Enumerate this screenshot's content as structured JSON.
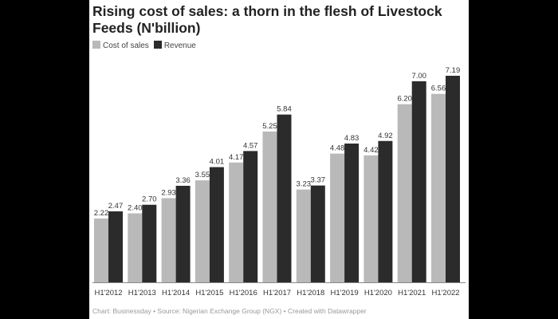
{
  "chart_data": {
    "type": "bar",
    "title": "Rising cost of sales: a thorn in the flesh of Livestock Feeds (N'billion)",
    "categories": [
      "H1'2012",
      "H1'2013",
      "H1'2014",
      "H1'2015",
      "H1'2016",
      "H1'2017",
      "H1'2018",
      "H1'2019",
      "H1'2020",
      "H1'2021",
      "H1'2022"
    ],
    "series": [
      {
        "name": "Cost of sales",
        "color": "#b9b9b9",
        "values": [
          2.22,
          2.4,
          2.93,
          3.55,
          4.17,
          5.25,
          3.23,
          4.48,
          4.42,
          6.2,
          6.56
        ]
      },
      {
        "name": "Revenue",
        "color": "#2b2b2b",
        "values": [
          2.47,
          2.7,
          3.36,
          4.01,
          4.57,
          5.84,
          3.37,
          4.83,
          4.92,
          7.0,
          7.19
        ]
      }
    ],
    "xlabel": "",
    "ylabel": "",
    "ylim": [
      0,
      7.19
    ],
    "grid": false,
    "legend": "top-left"
  },
  "footer": "Chart: Businessday • Source: Nigerian Exchange Group (NGX) • Created with Datawrapper"
}
